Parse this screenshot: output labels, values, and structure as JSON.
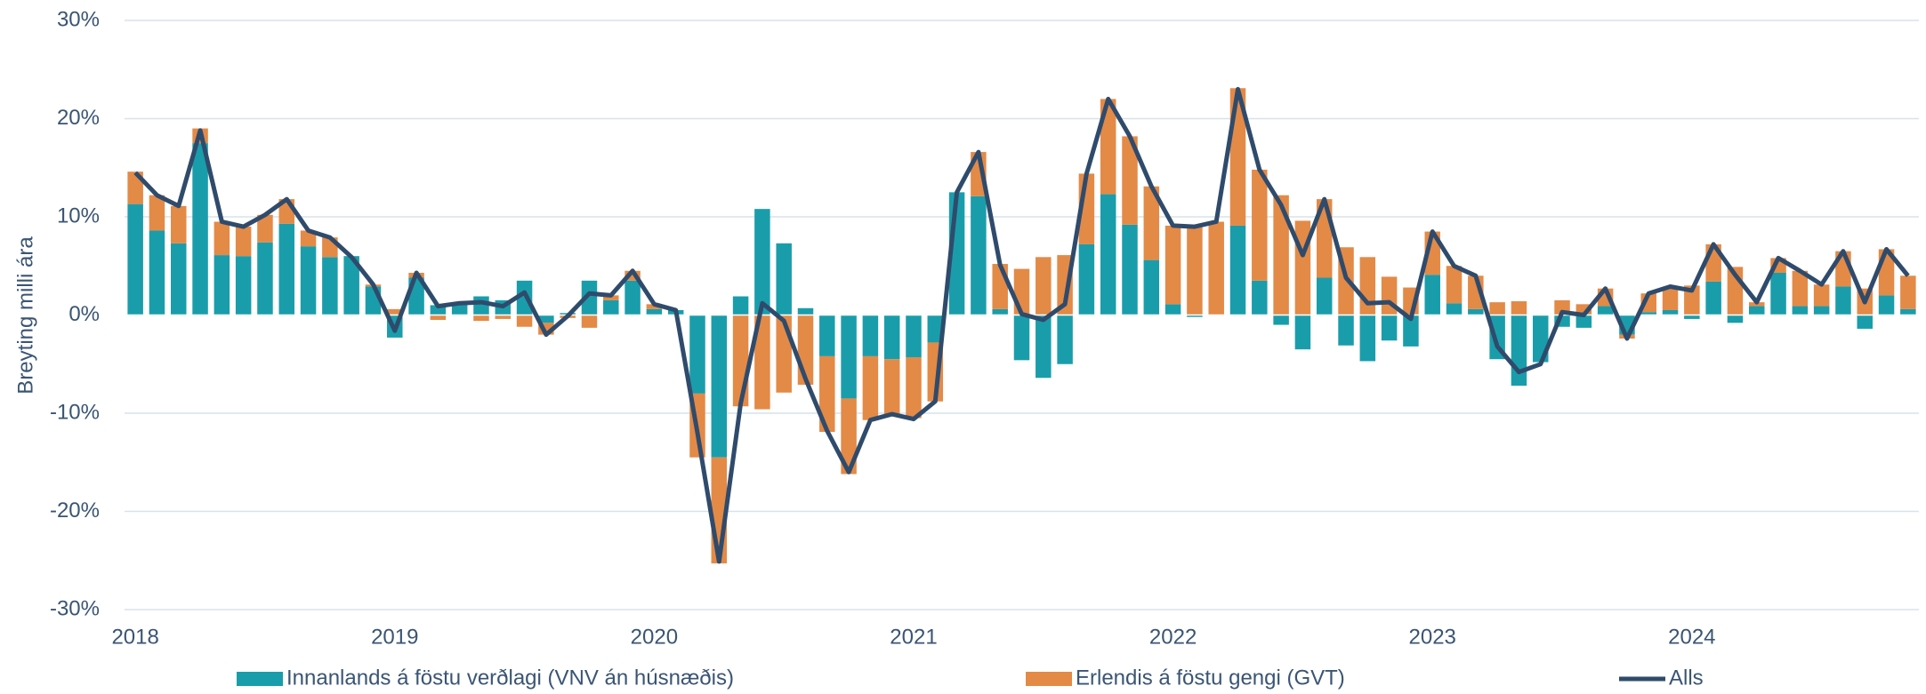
{
  "chart_data": {
    "type": "bar-line",
    "y_axis_label": "Breyting milli ára",
    "categories": [
      "2018",
      null,
      null,
      null,
      null,
      null,
      null,
      null,
      null,
      null,
      null,
      null,
      "2019",
      null,
      null,
      null,
      null,
      null,
      null,
      null,
      null,
      null,
      null,
      null,
      "2020",
      null,
      null,
      null,
      null,
      null,
      null,
      null,
      null,
      null,
      null,
      null,
      "2021",
      null,
      null,
      null,
      null,
      null,
      null,
      null,
      null,
      null,
      null,
      null,
      "2022",
      null,
      null,
      null,
      null,
      null,
      null,
      null,
      null,
      null,
      null,
      null,
      "2023",
      null,
      null,
      null,
      null,
      null,
      null,
      null,
      null,
      null,
      null,
      null,
      "2024",
      null,
      null,
      null,
      null,
      null,
      null,
      null,
      null,
      null,
      null
    ],
    "series": [
      {
        "name": "Innanlands á föstu verðlagi (VNV án húsnæðis)",
        "type": "bar",
        "color": "#1a9dab",
        "values": [
          11.3,
          8.6,
          7.3,
          17.5,
          6.1,
          6.0,
          7.4,
          9.3,
          7.0,
          5.9,
          6.0,
          2.9,
          -2.3,
          3.8,
          1.0,
          1.2,
          1.9,
          1.5,
          3.5,
          -0.8,
          0.2,
          3.5,
          1.5,
          3.5,
          0.6,
          0.5,
          -8.0,
          -14.5,
          1.9,
          10.8,
          7.3,
          0.7,
          -4.2,
          -8.5,
          -4.2,
          -4.5,
          -4.3,
          -2.8,
          12.5,
          12.1,
          0.6,
          -4.6,
          -6.4,
          -5.0,
          7.2,
          12.3,
          9.2,
          5.6,
          1.1,
          -0.2,
          0,
          9.1,
          3.5,
          -1.0,
          -3.5,
          3.8,
          -3.1,
          -4.7,
          -2.6,
          -3.2,
          4.1,
          1.2,
          0.6,
          -4.5,
          -7.2,
          -4.8,
          -1.2,
          -1.3,
          0.9,
          -2.0,
          0.3,
          0.5,
          -0.4,
          3.4,
          -0.8,
          0.9,
          4.3,
          0.9,
          0.9,
          2.9,
          -1.4,
          2.0,
          0.6
        ]
      },
      {
        "name": "Erlendis á föstu gengi (GVT)",
        "type": "bar",
        "color": "#e38a47",
        "values": [
          3.3,
          3.6,
          3.8,
          1.5,
          3.4,
          3.0,
          2.8,
          2.5,
          1.6,
          2.0,
          0,
          0.2,
          0.6,
          0.5,
          -0.5,
          0.1,
          -0.6,
          -0.4,
          -1.2,
          -1.2,
          -0.3,
          -1.3,
          0.5,
          1.0,
          0.5,
          0,
          -6.5,
          -10.8,
          -9.3,
          -9.6,
          -7.9,
          -7.1,
          -7.7,
          -7.7,
          -6.5,
          -5.7,
          -6.2,
          -6.0,
          0,
          4.5,
          4.6,
          4.7,
          5.9,
          6.1,
          7.2,
          9.7,
          9.0,
          7.5,
          8.0,
          9.2,
          9.5,
          14.0,
          11.3,
          12.2,
          9.6,
          8.0,
          6.9,
          5.9,
          3.9,
          2.8,
          4.4,
          3.8,
          3.4,
          1.3,
          1.4,
          0,
          1.5,
          1.1,
          1.8,
          -0.4,
          1.9,
          2.4,
          3.0,
          3.8,
          4.9,
          0.4,
          1.5,
          3.6,
          2.2,
          3.6,
          2.7,
          4.7,
          3.4
        ]
      },
      {
        "name": "Alls",
        "type": "line",
        "color": "#2f4b6c",
        "values": [
          14.5,
          12.2,
          11.1,
          18.8,
          9.5,
          9.0,
          10.2,
          11.8,
          8.6,
          7.9,
          5.9,
          3.1,
          -1.6,
          4.3,
          0.9,
          1.2,
          1.3,
          0.9,
          2.3,
          -2.0,
          -0.1,
          2.2,
          2.0,
          4.5,
          1.1,
          0.5,
          -12.0,
          -25.1,
          -9.0,
          1.2,
          -0.6,
          -6.5,
          -11.8,
          -16.0,
          -10.7,
          -10.1,
          -10.6,
          -8.8,
          12.5,
          16.6,
          5.1,
          0.1,
          -0.5,
          1.1,
          14.4,
          22.0,
          18.2,
          13.1,
          9.1,
          9.0,
          9.5,
          23.0,
          14.8,
          11.2,
          6.1,
          11.8,
          3.8,
          1.2,
          1.3,
          -0.4,
          8.5,
          5.0,
          4.0,
          -3.2,
          -5.8,
          -5.0,
          0.3,
          0.0,
          2.7,
          -2.4,
          2.2,
          2.9,
          2.5,
          7.2,
          4.1,
          1.3,
          5.8,
          4.5,
          3.1,
          6.5,
          1.3,
          6.7,
          4.0
        ]
      }
    ],
    "ylim": [
      -30,
      30
    ],
    "yticks": [
      {
        "value": -30,
        "label": "-30%"
      },
      {
        "value": -20,
        "label": "-20%"
      },
      {
        "value": -10,
        "label": "-10%"
      },
      {
        "value": 0,
        "label": "0%"
      },
      {
        "value": 10,
        "label": "10%"
      },
      {
        "value": 20,
        "label": "20%"
      },
      {
        "value": 30,
        "label": "30%"
      }
    ],
    "grid": true,
    "legend": "bottom"
  }
}
